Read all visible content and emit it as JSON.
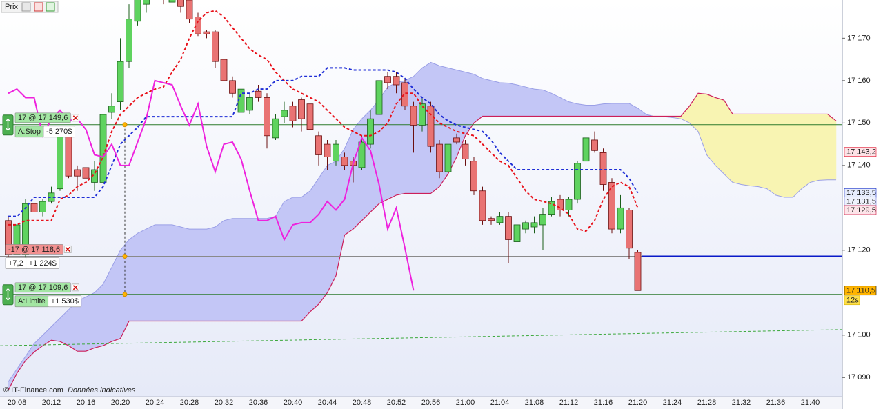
{
  "chart_data": {
    "type": "candlestick",
    "title": "Prix",
    "source": "© IT-Finance.com",
    "note": "Données indicatives",
    "ylim": [
      17085.5,
      17179
    ],
    "yticks": [
      {
        "value": 17090,
        "label": "17 090"
      },
      {
        "value": 17100,
        "label": "17 100"
      },
      {
        "value": 17120,
        "label": "17 120"
      },
      {
        "value": 17140,
        "label": "17 140"
      },
      {
        "value": 17150,
        "label": "17 150"
      },
      {
        "value": 17160,
        "label": "17 160"
      },
      {
        "value": 17170,
        "label": "17 170"
      }
    ],
    "categories": [
      null,
      "20:08",
      null,
      null,
      null,
      "20:12",
      null,
      null,
      null,
      "20:16",
      null,
      null,
      null,
      "20:20",
      null,
      null,
      null,
      "20:24",
      null,
      null,
      null,
      "20:28",
      null,
      null,
      null,
      "20:32",
      null,
      null,
      null,
      "20:36",
      null,
      null,
      null,
      "20:40",
      null,
      null,
      null,
      "20:44",
      null,
      null,
      null,
      "20:48",
      null,
      null,
      null,
      "20:52",
      null,
      null,
      null,
      "20:56",
      null,
      null,
      null,
      "21:00",
      null,
      null,
      null,
      "21:04",
      null,
      null,
      null,
      "21:08",
      null,
      null,
      null,
      "21:12",
      null,
      null,
      null,
      "21:16",
      null,
      null,
      null,
      "21:20",
      null,
      null,
      null,
      "21:24",
      null,
      null,
      null,
      "21:28",
      null,
      null,
      null,
      "21:32",
      null,
      null,
      null,
      "21:36",
      null,
      null,
      null,
      "21:40",
      null,
      null,
      null
    ],
    "open": [
      17127,
      17119,
      17119,
      17131,
      17129,
      17131.5,
      17134.5,
      17147,
      17139,
      17139.5,
      17136,
      17136,
      17152.5,
      17155,
      17164.5,
      17174,
      17178,
      17180,
      17182,
      17178.5,
      17181,
      17179,
      17175,
      17171.5,
      17171.5,
      17165,
      17160,
      17152.5,
      17153,
      17157.5,
      17156,
      17146.5,
      17151.5,
      17154,
      17155.5,
      17154.5,
      17147,
      17145,
      17141,
      17142,
      17141,
      17139.5,
      17145,
      17152,
      17161,
      17161,
      17159.5,
      17154,
      17149.5,
      17154,
      17145,
      17138.5,
      17146.5,
      17145,
      17141,
      17134,
      17127.5,
      17126.5,
      17128,
      17122,
      17125,
      17125.5,
      17126,
      17128.5,
      17132,
      17129.5,
      17132,
      17141,
      17146,
      17143,
      17136,
      17125,
      17129.5,
      17119.5,
      null,
      null,
      null,
      null,
      null,
      null,
      null,
      null,
      null,
      null,
      null,
      null,
      null,
      null,
      null,
      null,
      null,
      null,
      null,
      null,
      null,
      null,
      null
    ],
    "high": [
      17128,
      17127,
      17132,
      17132.5,
      17132,
      17135,
      17149,
      17148,
      17140,
      17141,
      17141,
      17153,
      17157,
      17170,
      17178,
      17183,
      17185,
      17184,
      17183,
      17181,
      17182,
      17180,
      17176,
      17172,
      17172,
      17166,
      17161,
      17159,
      17157,
      17159,
      17157,
      17152,
      17155,
      17155,
      17156,
      17156,
      17148,
      17146,
      17146,
      17143,
      17142,
      17147,
      17153,
      17161,
      17162,
      17162,
      17160.5,
      17155,
      17156,
      17155,
      17146,
      17146,
      17147.5,
      17146,
      17142,
      17135,
      17128,
      17129,
      17129,
      17127,
      17127,
      17128,
      17130,
      17132.5,
      17133,
      17132.5,
      17141,
      17148,
      17148,
      17144,
      17137,
      17133,
      17130,
      17120,
      null,
      null,
      null,
      null,
      null,
      null,
      null,
      null,
      null,
      null,
      null,
      null,
      null,
      null,
      null,
      null,
      null,
      null,
      null,
      null,
      null,
      null,
      null
    ],
    "low": [
      17118.5,
      17118,
      17118,
      17127,
      17128,
      17131,
      17134,
      17137,
      17134,
      17133,
      17134,
      17135,
      17151,
      17153,
      17163,
      17173,
      17176,
      17178,
      17178,
      17177,
      17176,
      17173.5,
      17170.5,
      17170,
      17163,
      17159,
      17156,
      17152,
      17152,
      17155,
      17144,
      17146,
      17150,
      17149,
      17148,
      17147,
      17140,
      17139,
      17140,
      17139,
      17136,
      17139,
      17144,
      17151,
      17158,
      17157,
      17153,
      17143,
      17148,
      17143,
      17137,
      17136,
      17145,
      17140,
      17133,
      17126,
      17126,
      17126,
      17117,
      17121,
      17124,
      17124,
      17120,
      17128,
      17128,
      17128,
      17131,
      17140,
      17143,
      17134,
      17124,
      17124,
      17118,
      17110.5,
      null,
      null,
      null,
      null,
      null,
      null,
      null,
      null,
      null,
      null,
      null,
      null,
      null,
      null,
      null,
      null,
      null,
      null,
      null,
      null,
      null,
      null,
      null
    ],
    "close": [
      17119,
      17126,
      17131,
      17129,
      17131.5,
      17133.5,
      17147,
      17137.5,
      17137.5,
      17137,
      17139,
      17152,
      17154,
      17164.5,
      17174.5,
      17181,
      17183,
      17182,
      17179.5,
      17180,
      17177.5,
      17174.5,
      17171,
      17171,
      17164.5,
      17160,
      17157,
      17158,
      17156,
      17156,
      17147,
      17151,
      17153,
      17150.5,
      17151,
      17148.5,
      17142.5,
      17142,
      17145,
      17140,
      17140,
      17145.5,
      17151,
      17160,
      17159.5,
      17159,
      17154,
      17149.5,
      17154.5,
      17144.5,
      17138.5,
      17145,
      17145.5,
      17141.5,
      17134,
      17127,
      17127,
      17128,
      17122.5,
      17126,
      17126.5,
      17126.5,
      17128.5,
      17131.5,
      17129.5,
      17132,
      17140.5,
      17146.5,
      17143.5,
      17135.5,
      17125,
      17130,
      17120.5,
      17110.5,
      null,
      null,
      null,
      null,
      null,
      null,
      null,
      null,
      null,
      null,
      null,
      null,
      null,
      null,
      null,
      null,
      null,
      null,
      null,
      null,
      null,
      null,
      null
    ],
    "up_color": "#5fd35f",
    "up_border": "#1a5e1a",
    "down_color": "#e97373",
    "down_border": "#6b1010",
    "cloud": {
      "span_a": [
        17089,
        17092,
        17095,
        17098,
        17100,
        17102,
        17104,
        17106,
        17108,
        17109,
        17110,
        17112,
        17116,
        17120,
        17122.5,
        17124,
        17125,
        17126,
        17126,
        17126,
        17125.5,
        17125,
        17125,
        17125,
        17125.5,
        17127,
        17127.5,
        17127.5,
        17127.5,
        17127.5,
        17127.5,
        17128,
        17131.5,
        17132.5,
        17132.5,
        17134,
        17137,
        17140,
        17141,
        17144,
        17148.5,
        17151,
        17153,
        17155.5,
        17158.5,
        17159.5,
        17160,
        17161,
        17163,
        17164.3,
        17163.5,
        17163,
        17162.5,
        17162,
        17161.5,
        17160.5,
        17160,
        17159.5,
        17159.4,
        17159,
        17158.5,
        17158,
        17157.8,
        17157,
        17156,
        17155,
        17154.5,
        17154.2,
        17154.2,
        17154.5,
        17154.6,
        17154.6,
        17154.6,
        17153.5,
        17152,
        17151.5,
        17151.5,
        17151.3,
        17151,
        17150,
        17148,
        17142.5,
        17140,
        17138,
        17136,
        17135.5,
        17135.2,
        17135,
        17134.5,
        17133,
        17132.5,
        17132.5,
        17134.5,
        17136,
        17136.5,
        17136.6,
        17136.6
      ],
      "span_b": [
        17087,
        17091,
        17094,
        17096,
        17097.5,
        17098.8,
        17098.5,
        17097.5,
        17096.2,
        17096.2,
        17097,
        17097.5,
        17098.5,
        17099.2,
        17103.3,
        17103.3,
        17103.3,
        17103.3,
        17103.3,
        17103.3,
        17103.3,
        17103.3,
        17103.3,
        17103.3,
        17103.3,
        17103.3,
        17103.3,
        17103.3,
        17103.3,
        17103.3,
        17103.3,
        17103.3,
        17103.3,
        17103.3,
        17103.3,
        17105.5,
        17107.3,
        17110,
        17114,
        17123.6,
        17125,
        17127,
        17129,
        17131,
        17132,
        17133,
        17133.4,
        17133.4,
        17133.4,
        17133.4,
        17135,
        17138,
        17142,
        17147,
        17150,
        17151.6,
        17151.6,
        17151.6,
        17151.6,
        17151.6,
        17151.6,
        17151.6,
        17151.6,
        17151.6,
        17151.6,
        17151.6,
        17151.6,
        17151.6,
        17151.6,
        17151.6,
        17151.6,
        17151.6,
        17151.6,
        17151.6,
        17151.6,
        17151.6,
        17151.6,
        17151.6,
        17151.6,
        17154,
        17157,
        17156.8,
        17156,
        17155.4,
        17152.1,
        17152.1,
        17152.1,
        17152.1,
        17152.1,
        17152.1,
        17152.1,
        17152.1,
        17152.1,
        17152.1,
        17152.1,
        17152.1,
        17150.5
      ],
      "up_color": "#c3c6f6",
      "down_color": "#f8f4b2",
      "span_a_color": "#9a9fe6",
      "span_b_color": "#cc1f5a"
    },
    "lines": [
      {
        "values": [
          17126,
          17126,
          17127,
          17127,
          17127,
          17127,
          17132,
          17133,
          17135,
          17136,
          17138,
          17142,
          17148,
          17152,
          17154,
          17156,
          17157,
          17158,
          17158.5,
          17162,
          17165,
          17170,
          17174,
          17176,
          17176.5,
          17175,
          17172.5,
          17170,
          17167.5,
          17166,
          17165,
          17162,
          17160,
          17158,
          17157,
          17156,
          17155,
          17153,
          17151,
          17149,
          17148,
          17147,
          17147,
          17148,
          17150,
          17154.5,
          17157,
          17157,
          17154,
          17152,
          17150,
          17149,
          17148,
          17147.5,
          17147,
          17145,
          17143,
          17141,
          17140,
          17137,
          17134,
          17132,
          17131.5,
          17131,
          17130,
          17128.5,
          17125,
          17124.5,
          17127,
          17132,
          17135,
          17136,
          17135,
          17130,
          null,
          null,
          null,
          null,
          null,
          null,
          null,
          null,
          null,
          null,
          null,
          null,
          null,
          null,
          null,
          null,
          null,
          null,
          null,
          null,
          null,
          null,
          null
        ],
        "color": "#e8121b",
        "dash": "4 3"
      },
      {
        "values": [
          17128,
          17128,
          17130,
          17132.5,
          17132.5,
          17132.5,
          17132.5,
          17132.5,
          17132.5,
          17132.5,
          17132.5,
          17135,
          17140,
          17145,
          17147,
          17149,
          17151.5,
          17151.5,
          17151.5,
          17151.5,
          17151.5,
          17151.5,
          17151.5,
          17151.5,
          17151.5,
          17151.5,
          17151.5,
          17157,
          17157,
          17158,
          17158,
          17160,
          17160,
          17160,
          17161,
          17161,
          17161,
          17163,
          17163,
          17163,
          17162.5,
          17162.5,
          17162.5,
          17162.5,
          17162.5,
          17162,
          17160.5,
          17158,
          17156,
          17154.5,
          17152,
          17150.5,
          17149.5,
          17149,
          17148.5,
          17148,
          17146,
          17143,
          17141,
          17139,
          17139,
          17139,
          17139,
          17139,
          17139,
          17139,
          17139,
          17139,
          17139,
          17139,
          17139,
          17139,
          17137,
          17133.5,
          null,
          null,
          null,
          null,
          null,
          null,
          null,
          null,
          null,
          null,
          null,
          null,
          null,
          null,
          null,
          null,
          null,
          null,
          null,
          null,
          null,
          null,
          null
        ],
        "color": "#1f2ed6",
        "dash": "4 3"
      },
      {
        "values": [
          17157,
          17158,
          17156,
          17156,
          17147,
          17151,
          17153,
          17150.5,
          17151,
          17148.5,
          17142.5,
          17142,
          17145,
          17140,
          17140,
          17145.5,
          17151,
          17160,
          17159.5,
          17159,
          17154,
          17149.5,
          17154.5,
          17144.5,
          17138.5,
          17145,
          17145.5,
          17141.5,
          17134,
          17127,
          17127,
          17128,
          17122.5,
          17126,
          17126.5,
          17126.5,
          17128.5,
          17131.5,
          17129.5,
          17132,
          17140.5,
          17146.5,
          17143.5,
          17135.5,
          17125,
          17130,
          17120.5,
          17110.5,
          null,
          null,
          null,
          null,
          null,
          null,
          null,
          null,
          null,
          null,
          null,
          null,
          null,
          null,
          null,
          null,
          null,
          null,
          null,
          null,
          null,
          null,
          null,
          null,
          null,
          null,
          null,
          null,
          null,
          null,
          null,
          null,
          null,
          null,
          null,
          null,
          null,
          null,
          null,
          null,
          null,
          null,
          null,
          null,
          null,
          null,
          null
        ],
        "color": "#ee22dd"
      }
    ],
    "trend_line": {
      "y": [
        17097.5,
        17101.3
      ],
      "color": "#3aa83a"
    },
    "orders": [
      {
        "label": "17 @ 17 149,6",
        "price": 17149.6,
        "type": "A:Stop",
        "pnl": "-5 270$",
        "pnl_color": "#d01010",
        "box_color": "#a3e6a3",
        "line_color": "#2d7a2d"
      },
      {
        "label": "-17 @ 17 118,6",
        "price": 17118.6,
        "change": "+7,2",
        "pnl": "+1 224$",
        "pnl_color": "#119911",
        "box_color": "#f29090",
        "line_color": "#8a8a8a"
      },
      {
        "label": "17 @ 17 109,6",
        "price": 17109.6,
        "type": "A:Limite",
        "pnl": "+1 530$",
        "pnl_color": "#119911",
        "box_color": "#a3e6a3",
        "line_color": "#2d7a2d"
      }
    ],
    "position_line": {
      "value": 17118.6,
      "color": "#0a1ac8"
    },
    "price_badges": [
      {
        "value": 17143.2,
        "label": "17 143,2",
        "color": "#e0102a",
        "background": "#fde2e6"
      },
      {
        "value": 17133.5,
        "label": "17 133,5",
        "color": "#1730c8",
        "background": "#e6ecfc"
      },
      {
        "value": 17131.5,
        "label": "17 131,5",
        "color": "#6e7bd9",
        "background": "#eef1fc"
      },
      {
        "value": 17129.5,
        "label": "17 129,5",
        "color": "#cc1540",
        "background": "#fde4e9"
      },
      {
        "value": 17110.5,
        "label": "17 110,5",
        "color": "#000000",
        "background": "#ffb400"
      }
    ],
    "timer": "12s"
  }
}
